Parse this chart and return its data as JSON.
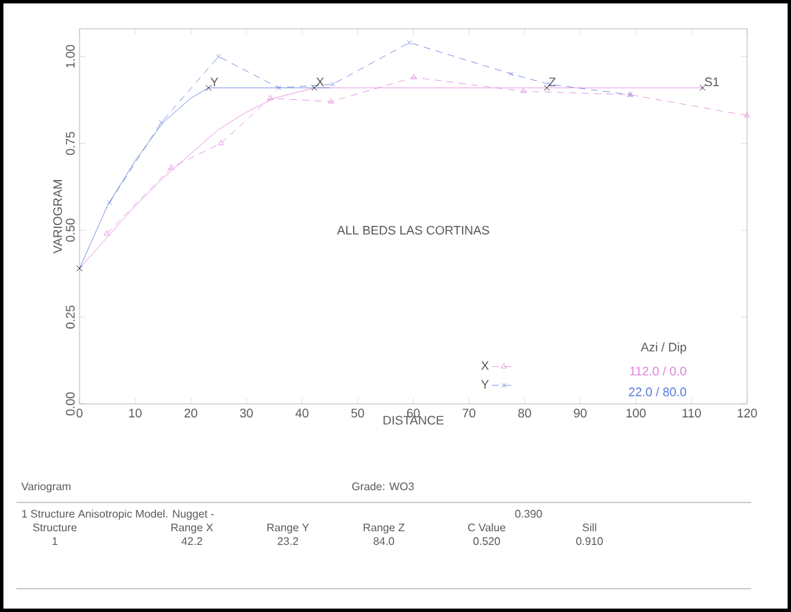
{
  "chart_data": {
    "type": "line",
    "xlabel": "DISTANCE",
    "ylabel": "VARIOGRAM",
    "legend_title": "Azi / Dip",
    "xlim": [
      0,
      120
    ],
    "xticks": [
      0,
      10,
      20,
      30,
      40,
      50,
      60,
      70,
      80,
      90,
      100,
      110,
      120
    ],
    "ylim": [
      0,
      1.08
    ],
    "yticks": [
      {
        "value": 0,
        "label": "0.00"
      },
      {
        "value": 0.25,
        "label": "0.25"
      },
      {
        "value": 0.5,
        "label": "0.50"
      },
      {
        "value": 0.75,
        "label": "0.75"
      },
      {
        "value": 1,
        "label": "1.00"
      }
    ],
    "grid": false,
    "legend": "bottom right",
    "series": [
      {
        "type": "line",
        "color": "#e080e0",
        "line_style": "solid",
        "marker": "none",
        "x": [
          0,
          5,
          10,
          15,
          20,
          25,
          30,
          35,
          42.2,
          112
        ],
        "values": [
          0.39,
          0.48,
          0.57,
          0.65,
          0.72,
          0.79,
          0.84,
          0.88,
          0.91,
          0.91
        ]
      },
      {
        "type": "line",
        "color": "#5a78d8",
        "line_style": "solid",
        "marker": "none",
        "x": [
          0,
          5,
          10,
          15,
          20,
          23.2,
          45
        ],
        "values": [
          0.39,
          0.57,
          0.7,
          0.81,
          0.88,
          0.91,
          0.91
        ]
      },
      {
        "type": "line",
        "name": "X",
        "color": "#e080e0",
        "line_style": "dashed",
        "marker": "triangle",
        "x": [
          4.9,
          16.5,
          25.4,
          34.3,
          45.2,
          60.1,
          79.8,
          99,
          120
        ],
        "values": [
          0.49,
          0.68,
          0.75,
          0.88,
          0.87,
          0.94,
          0.9,
          0.89,
          0.83
        ]
      },
      {
        "type": "line",
        "name": "Y",
        "color": "#5a78d8",
        "line_style": "dashed",
        "marker": "cross",
        "x": [
          5.4,
          14.7,
          25,
          35.8,
          45.5,
          59.3,
          77.6,
          84.5,
          99
        ],
        "values": [
          0.58,
          0.81,
          1.0,
          0.91,
          0.92,
          1.04,
          0.95,
          0.92,
          0.89
        ]
      },
      {
        "type": "scatter",
        "color": "#000000",
        "marker": "cross",
        "x": [
          0,
          23.2,
          42.2,
          84,
          112
        ],
        "values": [
          0.39,
          0.91,
          0.91,
          0.91,
          0.91
        ]
      }
    ],
    "annotations": [
      "ALL BEDS   LAS CORTINAS",
      "112.0 / 0.0",
      "22.0 / 80.0",
      {
        "text": "Y",
        "x": 23.2,
        "y": 0.91
      },
      {
        "text": "X",
        "x": 42.2,
        "y": 0.91
      },
      {
        "text": "Z",
        "x": 84,
        "y": 0.91
      },
      {
        "text": "S1",
        "x": 112,
        "y": 0.91
      },
      "Variogram",
      "Grade: WO3",
      "1 Structure Anisotropic Model.   Nugget -",
      "0.390",
      "Structure",
      "Range X",
      "Range Y",
      "Range Z",
      "C Value",
      "Sill",
      "1",
      "42.2",
      "23.2",
      "84.0",
      "0.520",
      "0.910"
    ]
  }
}
